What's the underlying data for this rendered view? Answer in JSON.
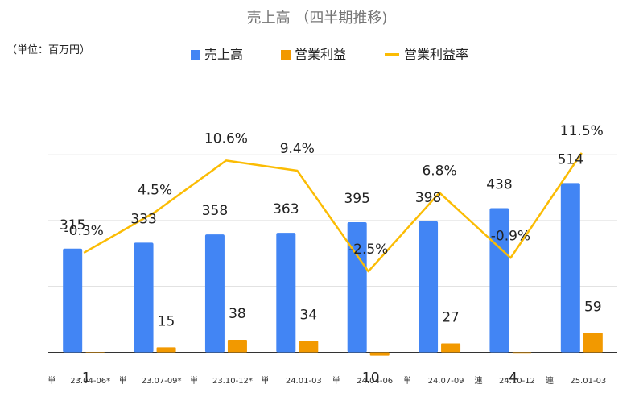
{
  "chart_data": {
    "type": "bar",
    "title": "売上高 （四半期推移)",
    "unit_note": "（単位：百万円）",
    "legend_position": "top",
    "grid": true,
    "categories": [
      "単 23.04-06*",
      "単 23.07-09*",
      "単 23.10-12*",
      "単 24.01-03",
      "単 24.04-06",
      "単 24.07-09",
      "連 24.10-12",
      "連 25.01-03"
    ],
    "category_tags": [
      "単",
      "単",
      "単",
      "単",
      "単",
      "単",
      "連",
      "連"
    ],
    "category_periods": [
      "23.04-06*",
      "23.07-09*",
      "23.10-12*",
      "24.01-03",
      "24.04-06",
      "24.07-09",
      "24.10-12",
      "25.01-03"
    ],
    "series": [
      {
        "name": "売上高",
        "type": "bar",
        "color": "#4285f4",
        "values": [
          315,
          333,
          358,
          363,
          395,
          398,
          438,
          514
        ],
        "labels": [
          "315",
          "333",
          "358",
          "363",
          "395",
          "398",
          "438",
          "514"
        ]
      },
      {
        "name": "営業利益",
        "type": "bar",
        "color": "#f29900",
        "values": [
          -1,
          15,
          38,
          34,
          -10,
          27,
          -4,
          59
        ],
        "labels": [
          "-1",
          "15",
          "38",
          "34",
          "-10",
          "27",
          "-4",
          "59"
        ]
      },
      {
        "name": "営業利益率",
        "type": "line",
        "color": "#fbbc04",
        "values": [
          -0.3,
          4.5,
          10.6,
          9.4,
          -2.5,
          6.8,
          -0.9,
          11.5
        ],
        "labels": [
          "-0.3%",
          "4.5%",
          "10.6%",
          "9.4%",
          "-2.5%",
          "6.8%",
          "-0.9%",
          "11.5%"
        ]
      }
    ],
    "y_range_amount": [
      -50,
      850
    ],
    "y_range_rate": [
      -14,
      21
    ]
  }
}
